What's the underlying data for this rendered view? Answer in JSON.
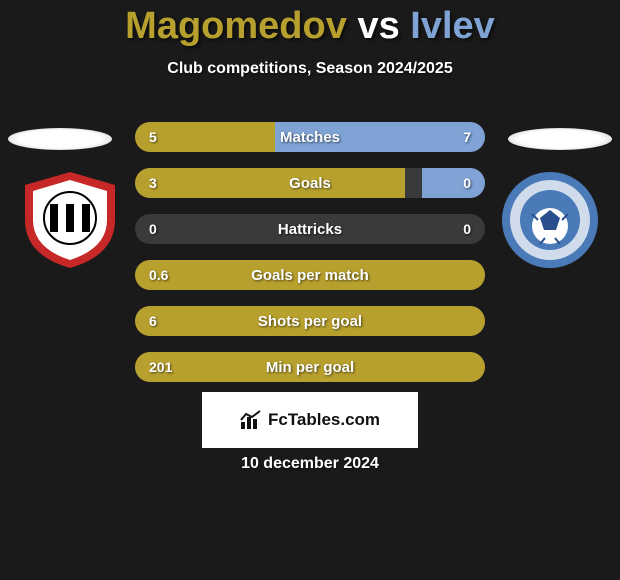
{
  "title": {
    "player1": "Magomedov",
    "vs": "vs",
    "player2": "Ivlev",
    "player1_color": "#b8a02e",
    "player2_color": "#7ea3d4"
  },
  "subtitle": "Club competitions, Season 2024/2025",
  "colors": {
    "left_fill": "#b8a02e",
    "right_fill": "#7ea3d4",
    "bar_bg": "#3a3a3a",
    "text": "#ffffff",
    "background": "#1a1a1a"
  },
  "bars": [
    {
      "label": "Matches",
      "lval": "5",
      "rval": "7",
      "lpct": 40,
      "rpct": 60
    },
    {
      "label": "Goals",
      "lval": "3",
      "rval": "0",
      "lpct": 77,
      "rpct": 18
    },
    {
      "label": "Hattricks",
      "lval": "0",
      "rval": "0",
      "lpct": 0,
      "rpct": 0
    },
    {
      "label": "Goals per match",
      "lval": "0.6",
      "rval": "",
      "lpct": 100,
      "rpct": 0
    },
    {
      "label": "Shots per goal",
      "lval": "6",
      "rval": "",
      "lpct": 100,
      "rpct": 0
    },
    {
      "label": "Min per goal",
      "lval": "201",
      "rval": "",
      "lpct": 100,
      "rpct": 0
    }
  ],
  "brand": "FcTables.com",
  "date": "10 december 2024",
  "crest_left": {
    "outer_color": "#c62828",
    "inner_bg": "#ffffff",
    "stripe_color": "#000000"
  },
  "crest_right": {
    "outer_color": "#4a7ab8",
    "ring_bg": "#d0dceb",
    "ball_color": "#2a4f8f"
  }
}
